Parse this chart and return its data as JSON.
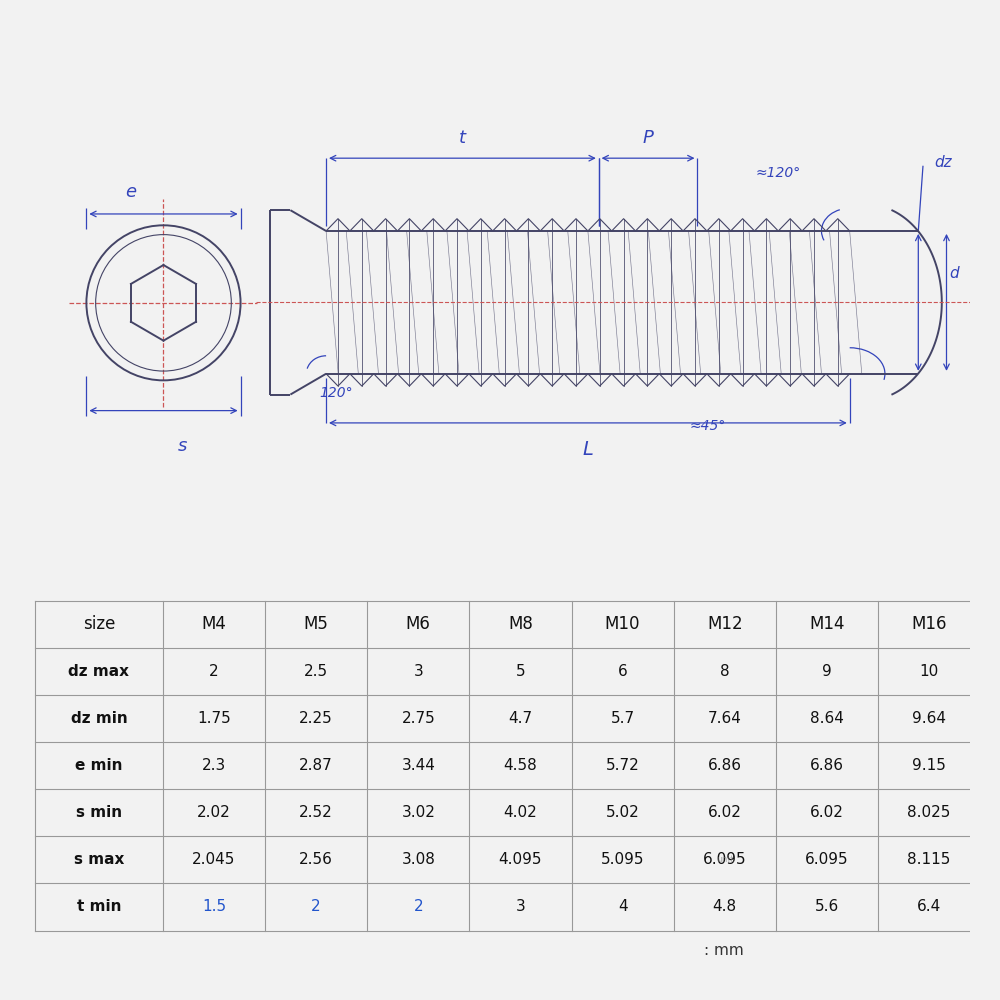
{
  "bg_color": "#f2f2f2",
  "drawing_bg": "#f0f2f8",
  "blue": "#3344bb",
  "line_color": "#444466",
  "red_dash": "#cc5555",
  "table_bg": "#ffffff",
  "table_line": "#999999",
  "table_headers": [
    "size",
    "M4",
    "M5",
    "M6",
    "M8",
    "M10",
    "M12",
    "M14",
    "M16"
  ],
  "table_rows": [
    [
      "dz max",
      "2",
      "2.5",
      "3",
      "5",
      "6",
      "8",
      "9",
      "10"
    ],
    [
      "dz min",
      "1.75",
      "2.25",
      "2.75",
      "4.7",
      "5.7",
      "7.64",
      "8.64",
      "9.64"
    ],
    [
      "e min",
      "2.3",
      "2.87",
      "3.44",
      "4.58",
      "5.72",
      "6.86",
      "6.86",
      "9.15"
    ],
    [
      "s min",
      "2.02",
      "2.52",
      "3.02",
      "4.02",
      "5.02",
      "6.02",
      "6.02",
      "8.025"
    ],
    [
      "s max",
      "2.045",
      "2.56",
      "3.08",
      "4.095",
      "5.095",
      "6.095",
      "6.095",
      "8.115"
    ],
    [
      "t min",
      "1.5",
      "2",
      "2",
      "3",
      "4",
      "4.8",
      "5.6",
      "6.4"
    ]
  ],
  "t_min_blue_cols": [
    1,
    2,
    3
  ],
  "unit_note": ": mm",
  "n_threads": 22,
  "thread_amplitude": 0.13,
  "hatch_count": 26
}
